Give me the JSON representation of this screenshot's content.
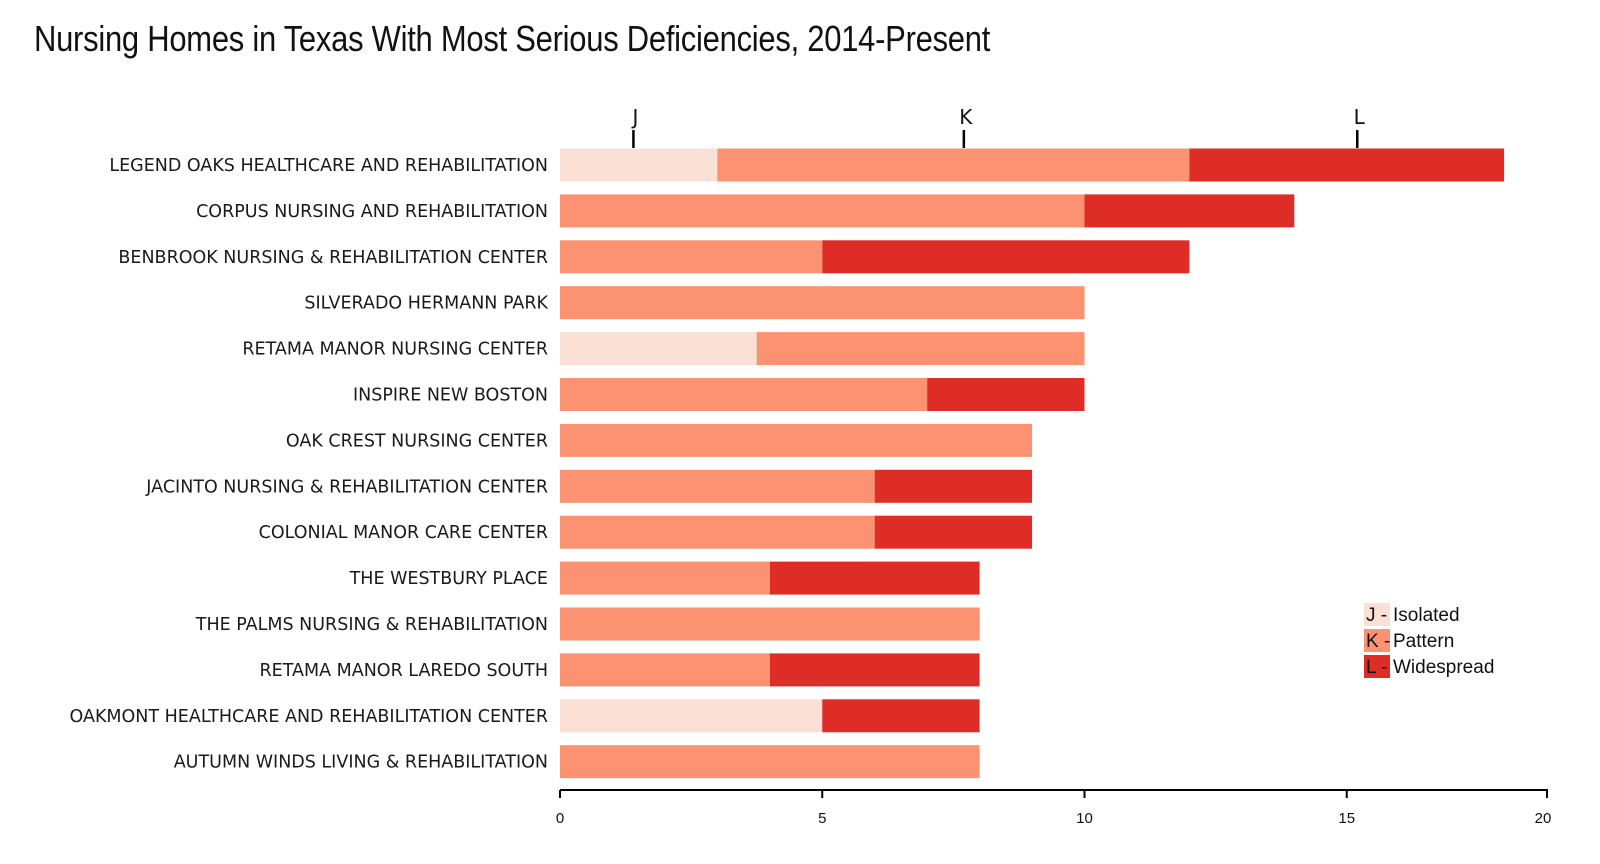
{
  "chart_data": {
    "type": "bar",
    "orientation": "horizontal",
    "stacked": true,
    "title": "Nursing Homes in Texas With Most Serious Deficiencies, 2014-Present",
    "xlabel": "",
    "ylabel": "",
    "xlim": [
      0,
      19
    ],
    "x_ticks": [
      "0",
      "5",
      "10",
      "15",
      "20"
    ],
    "grid": false,
    "legend_position": "right",
    "categories": [
      "LEGEND OAKS HEALTHCARE AND REHABILITATION",
      "CORPUS NURSING AND REHABILITATION",
      "BENBROOK NURSING & REHABILITATION CENTER",
      "SILVERADO HERMANN PARK",
      "RETAMA MANOR NURSING CENTER",
      "INSPIRE NEW BOSTON",
      "OAK CREST NURSING CENTER",
      "JACINTO NURSING & REHABILITATION CENTER",
      "COLONIAL MANOR CARE CENTER",
      "THE WESTBURY PLACE",
      "THE PALMS NURSING & REHABILITATION",
      "RETAMA MANOR LAREDO SOUTH",
      "OAKMONT HEALTHCARE AND REHABILITATION CENTER",
      "AUTUMN WINDS LIVING & REHABILITATION"
    ],
    "series": [
      {
        "key": "J",
        "name": "Isolated",
        "color": "#fbe0d6",
        "values": [
          3,
          0,
          0,
          0,
          3.75,
          0,
          0,
          0,
          0,
          0,
          0,
          0,
          5,
          0
        ]
      },
      {
        "key": "K",
        "name": "Pattern",
        "color": "#fb9373",
        "values": [
          9,
          10,
          5,
          10,
          6.25,
          7,
          9,
          6,
          6,
          4,
          8,
          4,
          0,
          8
        ]
      },
      {
        "key": "L",
        "name": "Widespread",
        "color": "#de2d26",
        "values": [
          6,
          4,
          7,
          0,
          0,
          3,
          0,
          3,
          3,
          4,
          0,
          4,
          3,
          0
        ]
      }
    ],
    "top_markers": [
      {
        "label": "J",
        "value": 1.4
      },
      {
        "label": "K",
        "value": 7.7
      },
      {
        "label": "L",
        "value": 15.2
      }
    ],
    "legend": [
      {
        "key": "J -",
        "label": "Isolated",
        "color": "#fbe0d6"
      },
      {
        "key": "K -",
        "label": "Pattern",
        "color": "#fb9373"
      },
      {
        "key": "L -",
        "label": "Widespread",
        "color": "#de2d26"
      }
    ]
  }
}
